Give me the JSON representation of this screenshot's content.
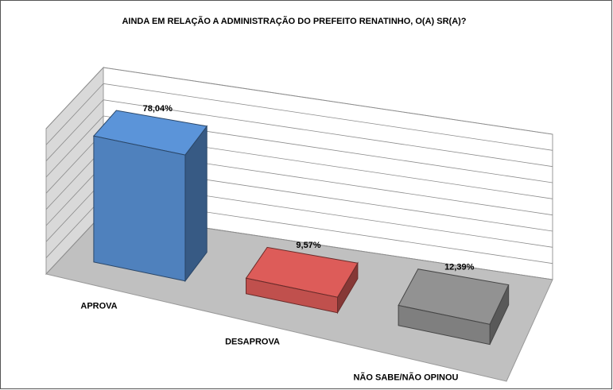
{
  "chart_data": {
    "type": "bar3d",
    "title": "AINDA EM RELAÇÃO A ADMINISTRAÇÃO DO PREFEITO RENATINHO, O(A) SR(A)?",
    "categories": [
      "APROVA",
      "DESAPROVA",
      "NÃO SABE/NÃO OPINOU"
    ],
    "values": [
      78.04,
      9.57,
      12.39
    ],
    "value_labels": [
      "78,04%",
      "9,57%",
      "12,39%"
    ],
    "colors": [
      "#4f81bd",
      "#c0504d",
      "#7f7f7f"
    ],
    "ylim": [
      0,
      90
    ],
    "yticks": [
      0,
      10,
      20,
      30,
      40,
      50,
      60,
      70,
      80,
      90
    ],
    "grid": true
  }
}
